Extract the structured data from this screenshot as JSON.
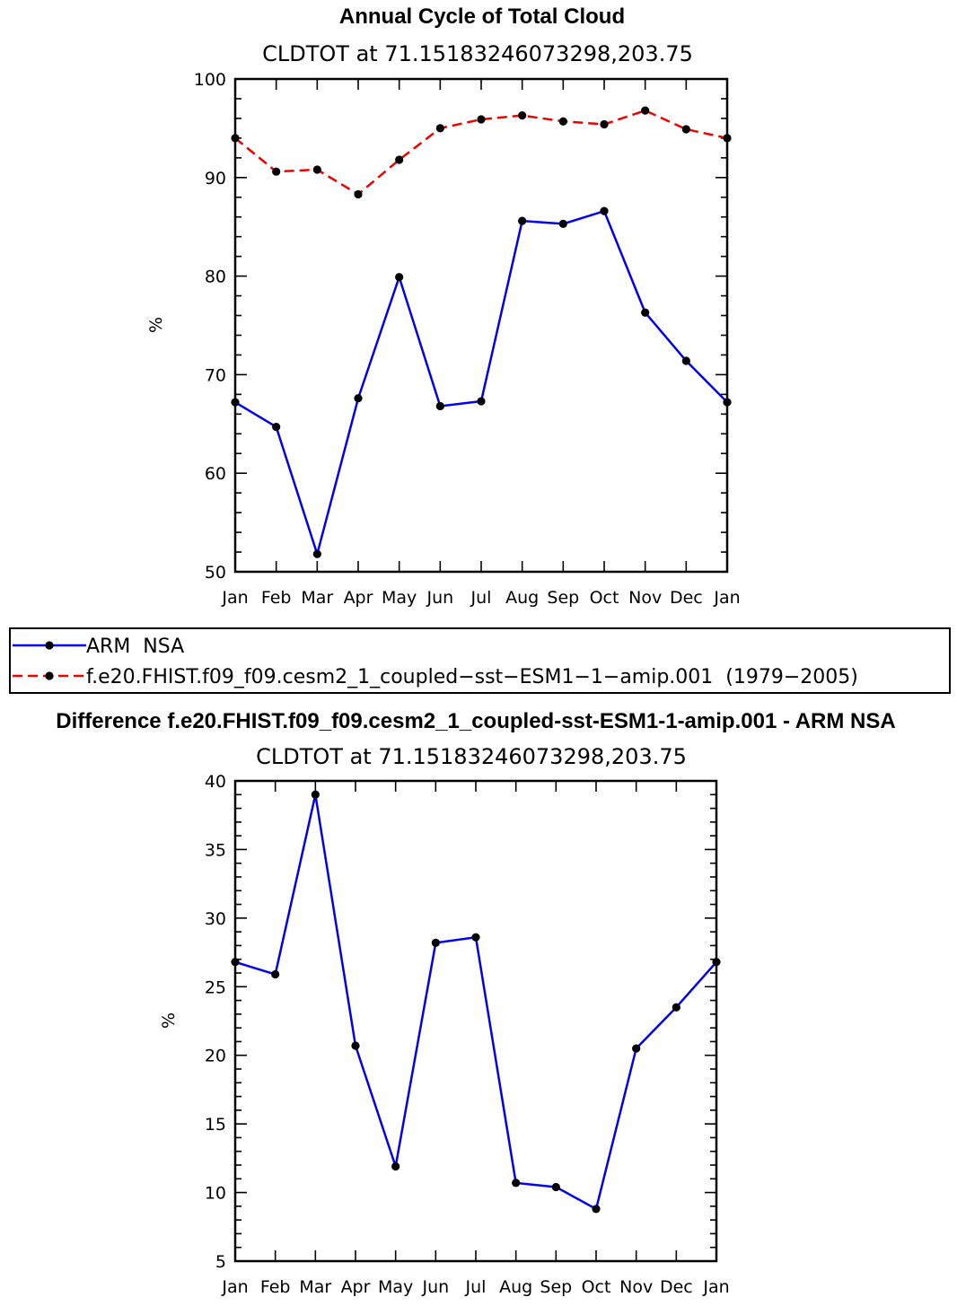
{
  "chart_data": [
    {
      "type": "line",
      "title": "Annual Cycle of Total Cloud",
      "subtitle": "CLDTOT  at  71.15183246073298,203.75",
      "xlabel": "",
      "ylabel": "%",
      "categories": [
        "Jan",
        "Feb",
        "Mar",
        "Apr",
        "May",
        "Jun",
        "Jul",
        "Aug",
        "Sep",
        "Oct",
        "Nov",
        "Dec",
        "Jan"
      ],
      "ylim": [
        50,
        100
      ],
      "yticks": [
        50,
        60,
        70,
        80,
        90,
        100
      ],
      "grid": false,
      "legend_position": "bottom",
      "series": [
        {
          "name": "ARM  NSA",
          "color": "#0000ee",
          "dash": "solid",
          "values": [
            67.2,
            64.7,
            51.8,
            67.6,
            79.9,
            66.8,
            67.3,
            85.6,
            85.3,
            86.6,
            76.3,
            71.4,
            67.2
          ]
        },
        {
          "name": "f.e20.FHIST.f09_f09.cesm2_1_coupled−sst−ESM1−1−amip.001  (1979−2005)",
          "color": "#ee0000",
          "dash": "dashed",
          "values": [
            94.0,
            90.6,
            90.8,
            88.3,
            91.8,
            95.0,
            95.9,
            96.3,
            95.7,
            95.4,
            96.8,
            94.9,
            94.0
          ]
        }
      ]
    },
    {
      "type": "line",
      "title": "Difference f.e20.FHIST.f09_f09.cesm2_1_coupled-sst-ESM1-1-amip.001 - ARM NSA",
      "subtitle": "CLDTOT  at  71.15183246073298,203.75",
      "xlabel": "",
      "ylabel": "%",
      "categories": [
        "Jan",
        "Feb",
        "Mar",
        "Apr",
        "May",
        "Jun",
        "Jul",
        "Aug",
        "Sep",
        "Oct",
        "Nov",
        "Dec",
        "Jan"
      ],
      "ylim": [
        5,
        40
      ],
      "yticks": [
        5,
        10,
        15,
        20,
        25,
        30,
        35,
        40
      ],
      "grid": false,
      "series": [
        {
          "color": "#0000ee",
          "dash": "solid",
          "values": [
            26.8,
            25.9,
            39.0,
            20.7,
            11.9,
            28.2,
            28.6,
            10.7,
            10.4,
            8.8,
            20.5,
            23.5,
            26.8
          ]
        }
      ]
    }
  ]
}
